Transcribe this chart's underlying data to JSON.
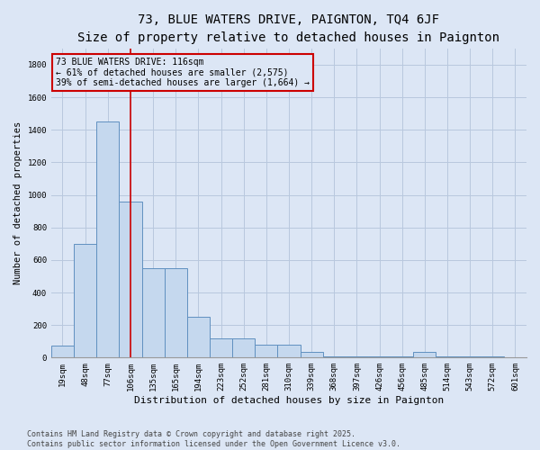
{
  "title": "73, BLUE WATERS DRIVE, PAIGNTON, TQ4 6JF",
  "subtitle": "Size of property relative to detached houses in Paignton",
  "xlabel": "Distribution of detached houses by size in Paignton",
  "ylabel": "Number of detached properties",
  "categories": [
    "19sqm",
    "48sqm",
    "77sqm",
    "106sqm",
    "135sqm",
    "165sqm",
    "194sqm",
    "223sqm",
    "252sqm",
    "281sqm",
    "310sqm",
    "339sqm",
    "368sqm",
    "397sqm",
    "426sqm",
    "456sqm",
    "485sqm",
    "514sqm",
    "543sqm",
    "572sqm",
    "601sqm"
  ],
  "values": [
    75,
    700,
    1450,
    960,
    550,
    550,
    250,
    120,
    120,
    80,
    80,
    35,
    10,
    10,
    5,
    5,
    35,
    5,
    5,
    5,
    3
  ],
  "bar_color": "#c5d8ee",
  "bar_edge_color": "#6090c0",
  "grid_color": "#b8c8de",
  "background_color": "#dce6f5",
  "annotation_box_color": "#cc0000",
  "property_line_color": "#cc0000",
  "annotation_text": "73 BLUE WATERS DRIVE: 116sqm\n← 61% of detached houses are smaller (2,575)\n39% of semi-detached houses are larger (1,664) →",
  "property_line_x": 3.0,
  "ylim": [
    0,
    1900
  ],
  "yticks": [
    0,
    200,
    400,
    600,
    800,
    1000,
    1200,
    1400,
    1600,
    1800
  ],
  "footnote": "Contains HM Land Registry data © Crown copyright and database right 2025.\nContains public sector information licensed under the Open Government Licence v3.0.",
  "title_fontsize": 10,
  "annotation_fontsize": 7,
  "tick_fontsize": 6.5,
  "ylabel_fontsize": 7.5,
  "xlabel_fontsize": 8,
  "footnote_fontsize": 6
}
